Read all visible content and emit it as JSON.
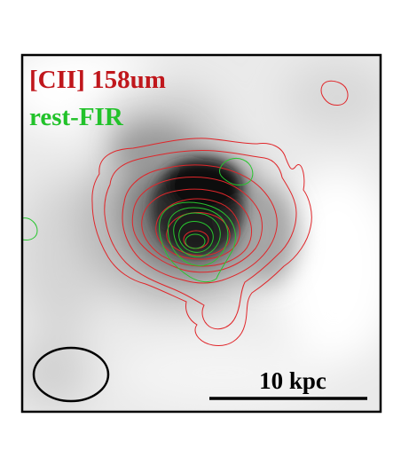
{
  "figure": {
    "labels": {
      "line1": "[CII] 158um",
      "line2": "rest-FIR",
      "scale_bar": "10 kpc"
    },
    "colors": {
      "line1": "#c0171c",
      "line2": "#22c22a",
      "contour_red": "#e0262a",
      "contour_green": "#28c62f",
      "frame": "#000000",
      "beam": "#000000"
    },
    "layers": [
      "grayscale-emission-map",
      "cii-contours",
      "fir-contours",
      "beam-ellipse",
      "scale-bar"
    ]
  }
}
